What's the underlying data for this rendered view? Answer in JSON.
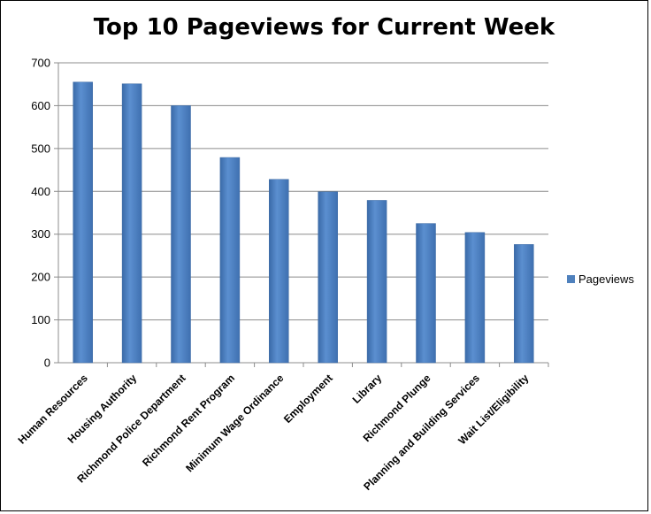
{
  "chart_data": {
    "type": "bar",
    "title": "Top 10 Pageviews for Current Week",
    "categories": [
      "Human Resources",
      "Housing Authority",
      "Richmond Police Department",
      "Richmond Rent Program",
      "Minimum Wage Ordinance",
      "Employment",
      "Library",
      "Richmond Plunge",
      "Planning and Building Services",
      "Wait List/Eligibility"
    ],
    "series": [
      {
        "name": "Pageviews",
        "values": [
          655,
          651,
          600,
          479,
          428,
          399,
          379,
          325,
          304,
          276
        ],
        "color": "#4F81BD"
      }
    ],
    "y_ticks": [
      "0",
      "100",
      "200",
      "300",
      "400",
      "500",
      "600",
      "700"
    ],
    "ylim": [
      0,
      700
    ],
    "grid": true,
    "legend": "right"
  }
}
